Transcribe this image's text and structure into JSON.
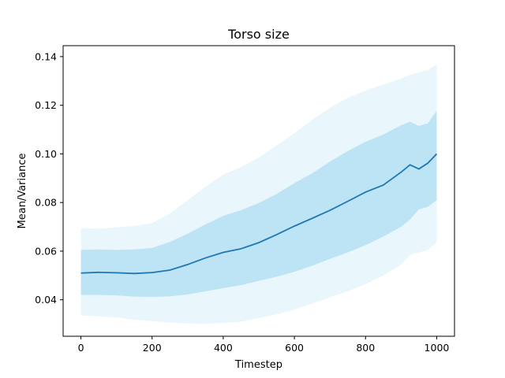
{
  "chart_data": {
    "type": "area",
    "title": "Torso size",
    "xlabel": "Timestep",
    "ylabel": "Mean/Variance",
    "xlim": [
      -50,
      1050
    ],
    "ylim": [
      0.025,
      0.1445
    ],
    "xticks": [
      0,
      200,
      400,
      600,
      800,
      1000
    ],
    "xtick_labels": [
      "0",
      "200",
      "400",
      "600",
      "800",
      "1000"
    ],
    "yticks": [
      0.04,
      0.06,
      0.08,
      0.1,
      0.12,
      0.14
    ],
    "ytick_labels": [
      "0.04",
      "0.06",
      "0.08",
      "0.10",
      "0.12",
      "0.14"
    ],
    "grid": false,
    "legend": "none",
    "colors": {
      "mean_line": "#1f77b4",
      "inner_band": "#87ceeb",
      "outer_band": "#87ceeb"
    },
    "x": [
      0,
      50,
      100,
      150,
      200,
      250,
      300,
      350,
      400,
      450,
      500,
      550,
      600,
      650,
      700,
      750,
      800,
      850,
      900,
      925,
      950,
      975,
      1000
    ],
    "series": [
      {
        "role": "mean",
        "values": [
          0.051,
          0.0513,
          0.0511,
          0.0508,
          0.0512,
          0.0522,
          0.0545,
          0.0572,
          0.0595,
          0.061,
          0.0635,
          0.0668,
          0.0703,
          0.0735,
          0.0768,
          0.0805,
          0.0843,
          0.0872,
          0.0925,
          0.0955,
          0.0938,
          0.0962,
          0.1
        ]
      },
      {
        "role": "inner_band",
        "lower": [
          0.042,
          0.042,
          0.0418,
          0.0413,
          0.0412,
          0.0414,
          0.0422,
          0.0435,
          0.0448,
          0.046,
          0.0478,
          0.0495,
          0.0515,
          0.054,
          0.0568,
          0.0595,
          0.0625,
          0.066,
          0.07,
          0.073,
          0.0772,
          0.0782,
          0.081
        ],
        "upper": [
          0.0605,
          0.0607,
          0.0605,
          0.0607,
          0.0613,
          0.0638,
          0.0672,
          0.071,
          0.0745,
          0.0768,
          0.0798,
          0.0835,
          0.088,
          0.092,
          0.0968,
          0.1012,
          0.105,
          0.108,
          0.1118,
          0.1132,
          0.1115,
          0.1125,
          0.1178
        ]
      },
      {
        "role": "outer_band",
        "lower": [
          0.0335,
          0.0332,
          0.0328,
          0.0318,
          0.0312,
          0.0307,
          0.0303,
          0.0302,
          0.0305,
          0.031,
          0.0325,
          0.034,
          0.036,
          0.0385,
          0.041,
          0.0435,
          0.0465,
          0.05,
          0.0545,
          0.0585,
          0.0595,
          0.0605,
          0.0635
        ],
        "upper": [
          0.0695,
          0.0692,
          0.0698,
          0.0703,
          0.0715,
          0.0755,
          0.081,
          0.0865,
          0.0915,
          0.0945,
          0.0985,
          0.1035,
          0.1085,
          0.114,
          0.119,
          0.123,
          0.126,
          0.1285,
          0.131,
          0.1325,
          0.1335,
          0.1345,
          0.1368
        ]
      }
    ]
  }
}
